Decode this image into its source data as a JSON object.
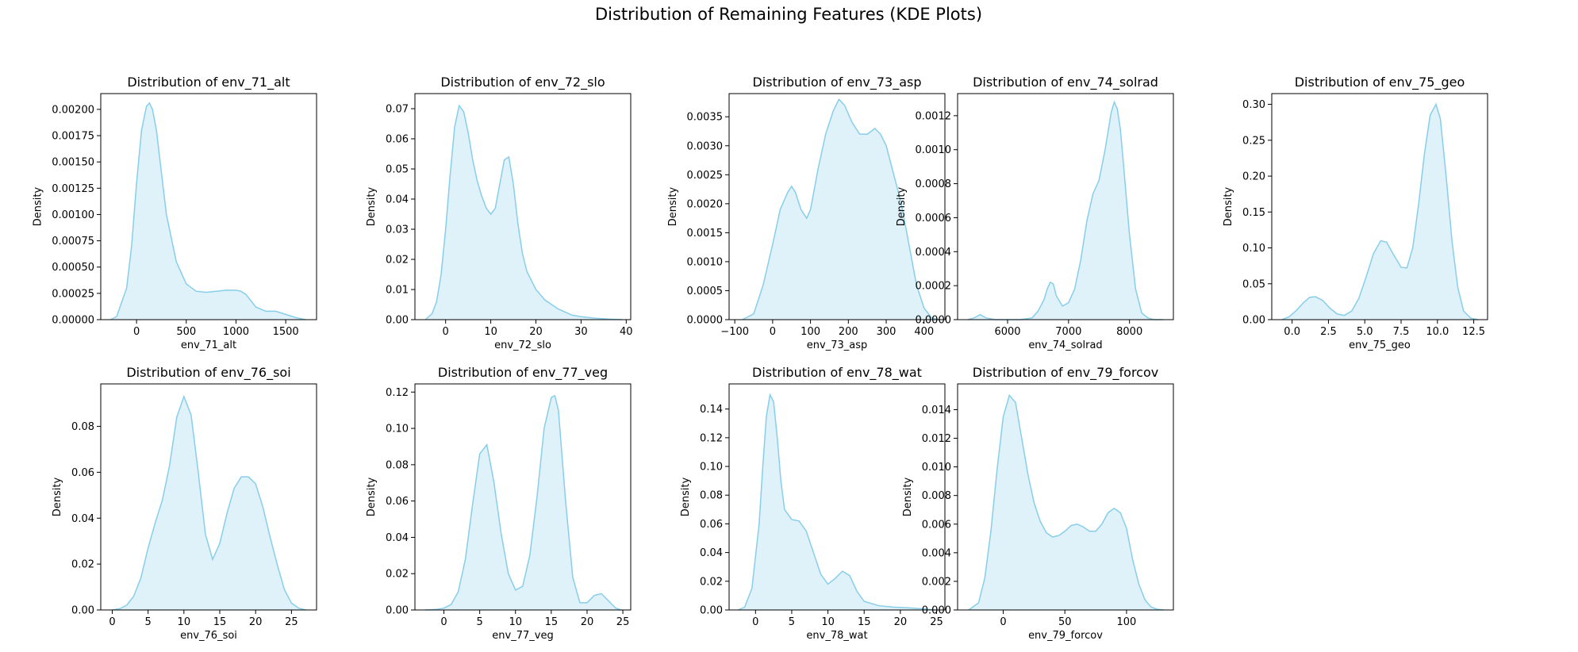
{
  "figure": {
    "title": "Distribution of Remaining Features (KDE Plots)"
  },
  "colors": {
    "line": "#87ceeb",
    "fill": "#dff1f9"
  },
  "chart_data": [
    {
      "type": "area",
      "title": "Distribution of env_71_alt",
      "xlabel": "env_71_alt",
      "ylabel": "Density",
      "xlim": [
        -360,
        1810
      ],
      "ylim": [
        0,
        0.00215
      ],
      "xticks": [
        0,
        500,
        1000,
        1500
      ],
      "yticks": [
        0,
        0.00025,
        0.0005,
        0.00075,
        0.001,
        0.00125,
        0.0015,
        0.00175,
        0.002
      ],
      "ytick_labels": [
        "0.00000",
        "0.00025",
        "0.00050",
        "0.00075",
        "0.00100",
        "0.00125",
        "0.00150",
        "0.00175",
        "0.00200"
      ],
      "x": [
        -260,
        -200,
        -100,
        -50,
        0,
        50,
        100,
        130,
        160,
        200,
        250,
        300,
        400,
        500,
        600,
        700,
        800,
        900,
        1000,
        1050,
        1100,
        1150,
        1200,
        1300,
        1400,
        1500,
        1600,
        1700
      ],
      "y": [
        0,
        3e-05,
        0.0003,
        0.0007,
        0.0013,
        0.0018,
        0.00203,
        0.00206,
        0.002,
        0.0018,
        0.0014,
        0.001,
        0.00055,
        0.00034,
        0.00027,
        0.00026,
        0.00027,
        0.00028,
        0.00028,
        0.00027,
        0.00024,
        0.00018,
        0.00012,
        8e-05,
        8e-05,
        5e-05,
        2e-05,
        0
      ]
    },
    {
      "type": "area",
      "title": "Distribution of env_72_slo",
      "xlabel": "env_72_slo",
      "ylabel": "Density",
      "xlim": [
        -6.8,
        41
      ],
      "ylim": [
        0,
        0.075
      ],
      "xticks": [
        0,
        10,
        20,
        30,
        40
      ],
      "yticks": [
        0,
        0.01,
        0.02,
        0.03,
        0.04,
        0.05,
        0.06,
        0.07
      ],
      "ytick_labels": [
        "0.00",
        "0.01",
        "0.02",
        "0.03",
        "0.04",
        "0.05",
        "0.06",
        "0.07"
      ],
      "x": [
        -4.5,
        -3,
        -2,
        -1,
        0,
        1,
        2,
        3,
        4,
        5,
        6,
        7,
        8,
        9,
        10,
        11,
        12,
        13,
        14,
        15,
        16,
        17,
        18,
        20,
        22,
        25,
        28,
        30,
        33,
        36,
        39
      ],
      "y": [
        0,
        0.002,
        0.006,
        0.015,
        0.03,
        0.048,
        0.064,
        0.071,
        0.069,
        0.062,
        0.053,
        0.046,
        0.041,
        0.037,
        0.035,
        0.037,
        0.045,
        0.053,
        0.054,
        0.045,
        0.032,
        0.022,
        0.016,
        0.01,
        0.0065,
        0.0035,
        0.0015,
        0.001,
        0.0005,
        0.0002,
        0
      ]
    },
    {
      "type": "area",
      "title": "Distribution of env_73_asp",
      "xlabel": "env_73_asp",
      "ylabel": "Density",
      "xlim": [
        -115,
        455
      ],
      "ylim": [
        0,
        0.0039
      ],
      "xticks": [
        -100,
        0,
        100,
        200,
        300,
        400
      ],
      "xtick_labels": [
        "−100",
        "0",
        "100",
        "200",
        "300",
        "400"
      ],
      "yticks": [
        0,
        0.0005,
        0.001,
        0.0015,
        0.002,
        0.0025,
        0.003,
        0.0035
      ],
      "ytick_labels": [
        "0.0000",
        "0.0005",
        "0.0010",
        "0.0015",
        "0.0020",
        "0.0025",
        "0.0030",
        "0.0035"
      ],
      "x": [
        -80,
        -50,
        -25,
        0,
        20,
        40,
        50,
        60,
        75,
        90,
        100,
        120,
        140,
        160,
        175,
        190,
        210,
        230,
        250,
        270,
        285,
        300,
        320,
        340,
        360,
        380,
        400,
        420,
        440
      ],
      "y": [
        0,
        0.0001,
        0.0006,
        0.0013,
        0.0019,
        0.0022,
        0.0023,
        0.0022,
        0.0019,
        0.00175,
        0.0019,
        0.0026,
        0.0032,
        0.0036,
        0.0038,
        0.0037,
        0.0034,
        0.0032,
        0.0032,
        0.0033,
        0.0032,
        0.003,
        0.0025,
        0.002,
        0.0013,
        0.0006,
        0.0002,
        3e-05,
        0
      ]
    },
    {
      "type": "area",
      "title": "Distribution of env_74_solrad",
      "xlabel": "env_74_solrad",
      "ylabel": "Density",
      "xlim": [
        5180,
        8720
      ],
      "ylim": [
        0,
        0.00133
      ],
      "xticks": [
        6000,
        7000,
        8000
      ],
      "yticks": [
        0,
        0.0002,
        0.0004,
        0.0006,
        0.0008,
        0.001,
        0.0012
      ],
      "ytick_labels": [
        "0.0000",
        "0.0002",
        "0.0004",
        "0.0006",
        "0.0008",
        "0.0010",
        "0.0012"
      ],
      "x": [
        5350,
        5450,
        5550,
        5650,
        5800,
        6000,
        6200,
        6400,
        6500,
        6600,
        6650,
        6700,
        6750,
        6800,
        6900,
        7000,
        7100,
        7200,
        7300,
        7400,
        7500,
        7600,
        7700,
        7750,
        7800,
        7850,
        7900,
        8000,
        8100,
        8200,
        8300,
        8400,
        8550
      ],
      "y": [
        0,
        1e-05,
        3e-05,
        1e-05,
        0,
        0,
        0,
        1e-05,
        5e-05,
        0.00012,
        0.00018,
        0.00022,
        0.00021,
        0.00014,
        8e-05,
        0.0001,
        0.00018,
        0.00035,
        0.00058,
        0.00074,
        0.00082,
        0.001,
        0.00122,
        0.00128,
        0.00124,
        0.00112,
        0.00092,
        0.0005,
        0.00018,
        4e-05,
        1e-05,
        0,
        0
      ]
    },
    {
      "type": "area",
      "title": "Distribution of env_75_geo",
      "xlabel": "env_75_geo",
      "ylabel": "Density",
      "xlim": [
        -1.4,
        13.45
      ],
      "ylim": [
        0,
        0.315
      ],
      "xticks": [
        0,
        2.5,
        5,
        7.5,
        10,
        12.5
      ],
      "xtick_labels": [
        "0.0",
        "2.5",
        "5.0",
        "7.5",
        "10.0",
        "12.5"
      ],
      "yticks": [
        0,
        0.05,
        0.1,
        0.15,
        0.2,
        0.25,
        0.3
      ],
      "ytick_labels": [
        "0.00",
        "0.05",
        "0.10",
        "0.15",
        "0.20",
        "0.25",
        "0.30"
      ],
      "x": [
        -0.7,
        -0.2,
        0.3,
        0.8,
        1.2,
        1.6,
        2.1,
        2.6,
        3.1,
        3.6,
        4.1,
        4.6,
        5.1,
        5.6,
        6.1,
        6.5,
        7,
        7.5,
        7.9,
        8.3,
        8.7,
        9.1,
        9.5,
        9.9,
        10.2,
        10.6,
        11,
        11.4,
        11.8,
        12.3,
        12.8
      ],
      "y": [
        0,
        0.004,
        0.013,
        0.024,
        0.031,
        0.032,
        0.027,
        0.016,
        0.008,
        0.006,
        0.012,
        0.03,
        0.06,
        0.092,
        0.11,
        0.108,
        0.09,
        0.073,
        0.072,
        0.1,
        0.16,
        0.23,
        0.285,
        0.3,
        0.28,
        0.2,
        0.11,
        0.045,
        0.012,
        0.002,
        0
      ]
    },
    {
      "type": "area",
      "title": "Distribution of env_76_soi",
      "xlabel": "env_76_soi",
      "ylabel": "Density",
      "xlim": [
        -1.6,
        28.5
      ],
      "ylim": [
        0,
        0.0985
      ],
      "xticks": [
        0,
        5,
        10,
        15,
        20,
        25
      ],
      "yticks": [
        0,
        0.02,
        0.04,
        0.06,
        0.08
      ],
      "ytick_labels": [
        "0.00",
        "0.02",
        "0.04",
        "0.06",
        "0.08"
      ],
      "x": [
        0,
        1,
        2,
        3,
        4,
        5,
        6,
        7,
        8,
        9,
        10,
        11,
        12,
        13,
        14,
        15,
        16,
        17,
        18,
        19,
        20,
        21,
        22,
        23,
        24,
        25,
        26,
        27
      ],
      "y": [
        0,
        0.0005,
        0.002,
        0.006,
        0.014,
        0.027,
        0.038,
        0.048,
        0.063,
        0.084,
        0.093,
        0.085,
        0.06,
        0.033,
        0.022,
        0.029,
        0.042,
        0.053,
        0.058,
        0.058,
        0.055,
        0.045,
        0.032,
        0.02,
        0.009,
        0.003,
        0.0008,
        0
      ]
    },
    {
      "type": "area",
      "title": "Distribution of env_77_veg",
      "xlabel": "env_77_veg",
      "ylabel": "Density",
      "xlim": [
        -4.05,
        26.1
      ],
      "ylim": [
        0,
        0.1245
      ],
      "xticks": [
        0,
        5,
        10,
        15,
        20,
        25
      ],
      "yticks": [
        0,
        0.02,
        0.04,
        0.06,
        0.08,
        0.1,
        0.12
      ],
      "ytick_labels": [
        "0.00",
        "0.02",
        "0.04",
        "0.06",
        "0.08",
        "0.10",
        "0.12"
      ],
      "x": [
        -2.6,
        -1,
        0,
        1,
        2,
        3,
        4,
        5,
        6,
        7,
        8,
        9,
        10,
        11,
        12,
        13,
        14,
        15,
        15.5,
        16,
        17,
        18,
        19,
        20,
        21,
        22,
        23,
        24,
        24.8
      ],
      "y": [
        0,
        0.0003,
        0.001,
        0.003,
        0.01,
        0.028,
        0.058,
        0.086,
        0.091,
        0.07,
        0.042,
        0.02,
        0.011,
        0.013,
        0.03,
        0.062,
        0.1,
        0.117,
        0.118,
        0.11,
        0.06,
        0.018,
        0.004,
        0.004,
        0.008,
        0.009,
        0.005,
        0.001,
        0
      ]
    },
    {
      "type": "area",
      "title": "Distribution of env_78_wat",
      "xlabel": "env_78_wat",
      "ylabel": "Density",
      "xlim": [
        -3.65,
        26.15
      ],
      "ylim": [
        0,
        0.1575
      ],
      "xticks": [
        0,
        5,
        10,
        15,
        20,
        25
      ],
      "yticks": [
        0,
        0.02,
        0.04,
        0.06,
        0.08,
        0.1,
        0.12,
        0.14
      ],
      "ytick_labels": [
        "0.00",
        "0.02",
        "0.04",
        "0.06",
        "0.08",
        "0.10",
        "0.12",
        "0.14"
      ],
      "x": [
        -2.4,
        -1.5,
        -0.5,
        0.5,
        1,
        1.5,
        2,
        2.5,
        3,
        3.5,
        4,
        5,
        6,
        7,
        8,
        9,
        10,
        11,
        12,
        13,
        14,
        15,
        17,
        19,
        21,
        23,
        24.8
      ],
      "y": [
        0,
        0.002,
        0.015,
        0.06,
        0.1,
        0.135,
        0.15,
        0.145,
        0.12,
        0.09,
        0.07,
        0.063,
        0.062,
        0.055,
        0.04,
        0.025,
        0.018,
        0.022,
        0.027,
        0.024,
        0.013,
        0.006,
        0.003,
        0.002,
        0.0015,
        0.0008,
        0
      ]
    },
    {
      "type": "area",
      "title": "Distribution of env_79_forcov",
      "xlabel": "env_79_forcov",
      "ylabel": "Density",
      "xlim": [
        -37,
        138
      ],
      "ylim": [
        0,
        0.0158
      ],
      "xticks": [
        0,
        50,
        100
      ],
      "yticks": [
        0,
        0.002,
        0.004,
        0.006,
        0.008,
        0.01,
        0.012,
        0.014
      ],
      "ytick_labels": [
        "0.000",
        "0.002",
        "0.004",
        "0.006",
        "0.008",
        "0.010",
        "0.012",
        "0.014"
      ],
      "x": [
        -28,
        -20,
        -15,
        -10,
        -5,
        0,
        5,
        10,
        15,
        20,
        25,
        30,
        35,
        40,
        45,
        50,
        55,
        60,
        65,
        70,
        75,
        80,
        85,
        90,
        95,
        100,
        105,
        110,
        115,
        120,
        125,
        130
      ],
      "y": [
        0,
        0.0005,
        0.0022,
        0.0055,
        0.0098,
        0.0135,
        0.015,
        0.0145,
        0.012,
        0.0095,
        0.0075,
        0.0062,
        0.0054,
        0.0051,
        0.0052,
        0.0055,
        0.0059,
        0.006,
        0.0058,
        0.0055,
        0.0055,
        0.006,
        0.0068,
        0.0071,
        0.0068,
        0.0057,
        0.0035,
        0.0018,
        0.0007,
        0.0002,
        5e-05,
        0
      ]
    }
  ]
}
